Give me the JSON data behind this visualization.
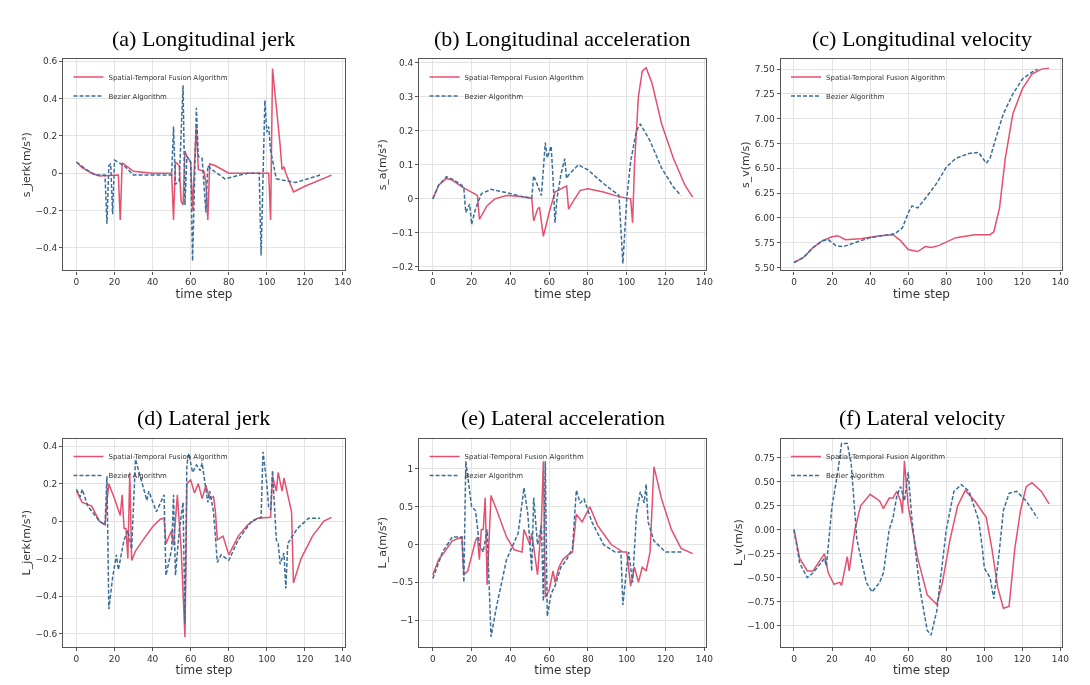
{
  "chart_data": [
    {
      "type": "line",
      "title": "(a) Longitudinal jerk",
      "xlabel": "time step",
      "ylabel": "s_jerk(m/s³)",
      "xlim": [
        -7,
        141
      ],
      "xticks": [
        0,
        20,
        40,
        60,
        80,
        100,
        120,
        140
      ],
      "ylim": [
        -0.52,
        0.61
      ],
      "yticks": [
        -0.4,
        -0.2,
        0.0,
        0.2,
        0.4,
        0.6
      ],
      "grid": true,
      "legend": "top left",
      "series": [
        {
          "name": "Spatial-Temporal Fusion Algorithm",
          "color": "#e4506e",
          "line_style": "solid",
          "x": [
            0,
            3,
            8,
            12,
            22,
            23,
            24,
            30,
            40,
            50,
            51,
            52,
            54,
            55,
            56,
            57,
            58,
            60,
            61,
            62,
            63,
            64,
            67,
            68,
            69,
            70,
            73,
            80,
            100,
            101,
            102,
            103,
            107,
            108,
            109,
            110,
            114,
            120,
            134
          ],
          "values": [
            0.06,
            0.03,
            0.0,
            -0.015,
            -0.01,
            -0.25,
            0.055,
            0.01,
            0.0,
            0.0,
            -0.25,
            0.06,
            0.04,
            -0.15,
            -0.17,
            0.12,
            0.09,
            0.06,
            -0.2,
            0.05,
            0.25,
            0.02,
            0.01,
            -0.05,
            -0.25,
            0.05,
            0.04,
            0.0,
            0.0,
            0.0,
            -0.25,
            0.56,
            0.15,
            0.02,
            0.035,
            0.0,
            -0.1,
            -0.07,
            -0.01
          ]
        },
        {
          "name": "Bezier Algorithm",
          "color": "#3a6e9a",
          "line_style": "dashed",
          "x": [
            0,
            5,
            10,
            15,
            16,
            17,
            18,
            19,
            20,
            25,
            30,
            40,
            50,
            51,
            52,
            54,
            56,
            57,
            58,
            60,
            61,
            63,
            64,
            66,
            68,
            69,
            71,
            78,
            90,
            96,
            97,
            99,
            100,
            101,
            102,
            105,
            115,
            128
          ],
          "values": [
            0.06,
            0.02,
            -0.01,
            -0.01,
            -0.27,
            0.04,
            0.05,
            -0.22,
            0.07,
            0.04,
            -0.01,
            -0.01,
            -0.01,
            0.25,
            -0.06,
            -0.04,
            0.47,
            -0.17,
            0.09,
            0.06,
            -0.47,
            0.35,
            0.09,
            0.08,
            -0.21,
            0.04,
            0.02,
            -0.03,
            0.0,
            0.0,
            -0.44,
            0.39,
            0.22,
            0.25,
            0.12,
            -0.03,
            -0.05,
            -0.01
          ]
        }
      ]
    },
    {
      "type": "line",
      "title": "(b) Longitudinal acceleration",
      "xlabel": "time step",
      "ylabel": "s_a(m/s²)",
      "xlim": [
        -7,
        141
      ],
      "xticks": [
        0,
        20,
        40,
        60,
        80,
        100,
        120,
        140
      ],
      "ylim": [
        -0.21,
        0.41
      ],
      "yticks": [
        -0.2,
        -0.1,
        0.0,
        0.1,
        0.2,
        0.3,
        0.4
      ],
      "grid": true,
      "legend": "top left",
      "series": [
        {
          "name": "Spatial-Temporal Fusion Algorithm",
          "color": "#e4506e",
          "line_style": "solid",
          "x": [
            0,
            3,
            7,
            10,
            15,
            23,
            24,
            28,
            32,
            38,
            45,
            51,
            52,
            54,
            55,
            57,
            60,
            62,
            63,
            69,
            70,
            72,
            76,
            80,
            88,
            95,
            102,
            103,
            104,
            106,
            108,
            110,
            113,
            118,
            124,
            130,
            134
          ],
          "values": [
            0.0,
            0.04,
            0.06,
            0.055,
            0.035,
            0.01,
            -0.06,
            -0.02,
            0.0,
            0.01,
            0.007,
            0.002,
            -0.065,
            -0.03,
            -0.025,
            -0.11,
            -0.04,
            0.0,
            0.02,
            0.038,
            -0.03,
            -0.01,
            0.025,
            0.03,
            0.02,
            0.008,
            0.0,
            -0.07,
            0.1,
            0.3,
            0.375,
            0.385,
            0.34,
            0.22,
            0.12,
            0.04,
            0.005
          ]
        },
        {
          "name": "Bezier Algorithm",
          "color": "#3a6e9a",
          "line_style": "dashed",
          "x": [
            0,
            3,
            7,
            10,
            15,
            16,
            17,
            19,
            20,
            22,
            25,
            30,
            38,
            45,
            51,
            52,
            54,
            56,
            58,
            59,
            61,
            62,
            63,
            64,
            66,
            68,
            69,
            70,
            75,
            80,
            88,
            96,
            98,
            100,
            102,
            105,
            107,
            112,
            118,
            124,
            128
          ],
          "values": [
            0.0,
            0.04,
            0.065,
            0.058,
            0.04,
            0.03,
            -0.04,
            -0.015,
            -0.075,
            -0.03,
            0.015,
            0.028,
            0.018,
            0.008,
            0.002,
            0.068,
            0.04,
            0.01,
            0.165,
            0.12,
            0.155,
            0.06,
            -0.07,
            0.0,
            0.07,
            0.118,
            0.06,
            0.07,
            0.1,
            0.085,
            0.045,
            0.01,
            -0.19,
            0.0,
            0.11,
            0.2,
            0.22,
            0.17,
            0.09,
            0.035,
            0.01
          ]
        }
      ]
    },
    {
      "type": "line",
      "title": "(c) Longitudinal velocity",
      "xlabel": "time step",
      "ylabel": "s_v(m/s)",
      "xlim": [
        -7,
        141
      ],
      "xticks": [
        0,
        20,
        40,
        60,
        80,
        100,
        120,
        140
      ],
      "ylim": [
        5.47,
        7.6
      ],
      "yticks": [
        {
          "value": 5.5,
          "label": "5.50"
        },
        {
          "value": 5.75,
          "label": "5.75"
        },
        {
          "value": 6.0,
          "label": "6.00"
        },
        {
          "value": 6.25,
          "label": "6.25"
        },
        {
          "value": 6.5,
          "label": "6.50"
        },
        {
          "value": 6.75,
          "label": "6.75"
        },
        {
          "value": 7.0,
          "label": "7.00"
        },
        {
          "value": 7.25,
          "label": "7.25"
        },
        {
          "value": 7.5,
          "label": "7.50"
        }
      ],
      "grid": true,
      "legend": "top left",
      "series": [
        {
          "name": "Spatial-Temporal Fusion Algorithm",
          "color": "#e4506e",
          "line_style": "solid",
          "x": [
            0,
            5,
            10,
            15,
            20,
            23,
            27,
            35,
            45,
            52,
            56,
            60,
            65,
            69,
            72,
            76,
            85,
            95,
            103,
            105,
            108,
            111,
            115,
            120,
            125,
            130,
            134
          ],
          "values": [
            5.55,
            5.6,
            5.7,
            5.77,
            5.81,
            5.82,
            5.78,
            5.79,
            5.82,
            5.83,
            5.77,
            5.68,
            5.66,
            5.71,
            5.7,
            5.72,
            5.8,
            5.83,
            5.83,
            5.86,
            6.1,
            6.6,
            7.05,
            7.3,
            7.45,
            7.5,
            7.51
          ]
        },
        {
          "name": "Bezier Algorithm",
          "color": "#3a6e9a",
          "line_style": "dashed",
          "x": [
            0,
            5,
            10,
            15,
            18,
            22,
            26,
            32,
            40,
            50,
            53,
            57,
            60,
            62,
            65,
            70,
            75,
            80,
            85,
            92,
            97,
            101,
            103,
            106,
            110,
            115,
            120,
            125,
            128
          ],
          "values": [
            5.55,
            5.6,
            5.7,
            5.77,
            5.78,
            5.72,
            5.71,
            5.75,
            5.8,
            5.83,
            5.84,
            5.9,
            6.05,
            6.12,
            6.1,
            6.22,
            6.35,
            6.51,
            6.6,
            6.65,
            6.66,
            6.55,
            6.6,
            6.8,
            7.05,
            7.25,
            7.4,
            7.47,
            7.5
          ]
        }
      ]
    },
    {
      "type": "line",
      "title": "(d) Lateral jerk",
      "xlabel": "time step",
      "ylabel": "L_jerk(m/s³)",
      "xlim": [
        -7,
        141
      ],
      "xticks": [
        0,
        20,
        40,
        60,
        80,
        100,
        120,
        140
      ],
      "ylim": [
        -0.67,
        0.44
      ],
      "yticks": [
        -0.6,
        -0.4,
        -0.2,
        0.0,
        0.2,
        0.4
      ],
      "grid": true,
      "legend": "top left",
      "series": [
        {
          "name": "Spatial-Temporal Fusion Algorithm",
          "color": "#e4506e",
          "line_style": "solid",
          "x": [
            0,
            3,
            8,
            12,
            15,
            16,
            17,
            20,
            23,
            24,
            25,
            26,
            27,
            28,
            29,
            31,
            35,
            40,
            44,
            46,
            47,
            50,
            51,
            53,
            55,
            57,
            58,
            60,
            62,
            64,
            66,
            68,
            70,
            72,
            73,
            74,
            77,
            80,
            85,
            90,
            95,
            102,
            103,
            105,
            106,
            108,
            109,
            113,
            114,
            118,
            124,
            130,
            134
          ],
          "values": [
            0.16,
            0.1,
            0.08,
            0.0,
            -0.02,
            0.1,
            0.2,
            0.12,
            0.03,
            0.14,
            -0.04,
            -0.04,
            -0.2,
            0.26,
            -0.21,
            -0.16,
            -0.1,
            -0.03,
            0.01,
            0.015,
            -0.12,
            -0.05,
            -0.13,
            0.14,
            -0.15,
            -0.62,
            0.2,
            0.22,
            0.15,
            0.2,
            0.12,
            0.19,
            0.12,
            0.13,
            0.05,
            -0.1,
            -0.08,
            -0.18,
            -0.08,
            -0.02,
            0.015,
            0.02,
            0.24,
            0.16,
            0.26,
            0.16,
            0.23,
            0.05,
            -0.33,
            -0.2,
            -0.08,
            0.0,
            0.02
          ]
        },
        {
          "name": "Bezier Algorithm",
          "color": "#3a6e9a",
          "line_style": "dashed",
          "x": [
            0,
            2,
            3,
            6,
            12,
            15,
            16,
            17,
            19,
            21,
            22,
            25,
            27,
            29,
            31,
            34,
            37,
            38,
            42,
            46,
            47,
            50,
            51,
            52,
            54,
            56,
            57,
            58,
            59,
            61,
            63,
            65,
            66,
            69,
            70,
            72,
            74,
            76,
            80,
            85,
            92,
            97,
            98,
            100,
            101,
            102,
            103,
            105,
            106,
            107,
            109,
            110,
            111,
            116,
            122,
            128
          ],
          "values": [
            0.17,
            0.13,
            0.17,
            0.08,
            0.0,
            -0.02,
            0.24,
            -0.47,
            -0.3,
            -0.18,
            -0.26,
            -0.1,
            -0.05,
            -0.15,
            0.33,
            0.22,
            0.11,
            0.16,
            0.05,
            0.14,
            -0.29,
            -0.15,
            0.14,
            -0.29,
            -0.05,
            0.1,
            -0.55,
            0.3,
            0.36,
            0.26,
            0.3,
            0.27,
            0.31,
            0.1,
            0.16,
            0.05,
            -0.22,
            -0.18,
            -0.21,
            -0.1,
            0.0,
            0.02,
            0.37,
            0.2,
            0.07,
            0.06,
            0.27,
            -0.1,
            -0.12,
            -0.23,
            -0.17,
            -0.36,
            -0.12,
            -0.04,
            0.015,
            0.015
          ]
        }
      ]
    },
    {
      "type": "line",
      "title": "(e) Lateral acceleration",
      "xlabel": "time step",
      "ylabel": "L_a(m/s²)",
      "xlim": [
        -7,
        141
      ],
      "xticks": [
        0,
        20,
        40,
        60,
        80,
        100,
        120,
        140
      ],
      "ylim": [
        -1.35,
        1.4
      ],
      "yticks": [
        -1.0,
        -0.5,
        0.0,
        0.5,
        1.0
      ],
      "grid": true,
      "legend": "top left",
      "series": [
        {
          "name": "Spatial-Temporal Fusion Algorithm",
          "color": "#e4506e",
          "line_style": "solid",
          "x": [
            0,
            3,
            6,
            10,
            15,
            16,
            18,
            22,
            23,
            24,
            25,
            26,
            27,
            28,
            30,
            33,
            38,
            42,
            46,
            47,
            50,
            51,
            54,
            56,
            57,
            58,
            60,
            62,
            63,
            65,
            67,
            69,
            72,
            74,
            77,
            81,
            85,
            92,
            98,
            100,
            102,
            104,
            106,
            108,
            110,
            112,
            114,
            118,
            123,
            128,
            134
          ],
          "values": [
            -0.4,
            -0.2,
            -0.1,
            0.05,
            0.1,
            -0.4,
            -0.35,
            0.05,
            0.1,
            -0.2,
            0.2,
            0.2,
            0.62,
            -0.53,
            0.65,
            0.45,
            0.1,
            -0.07,
            -0.1,
            0.2,
            0.0,
            0.15,
            -0.4,
            0.3,
            1.1,
            -0.7,
            -0.6,
            -0.35,
            -0.5,
            -0.3,
            -0.2,
            -0.15,
            -0.1,
            0.4,
            0.3,
            0.5,
            0.25,
            0.0,
            -0.1,
            -0.1,
            -0.55,
            -0.3,
            -0.5,
            -0.3,
            -0.35,
            -0.1,
            1.03,
            0.6,
            0.2,
            -0.05,
            -0.12
          ]
        },
        {
          "name": "Bezier Algorithm",
          "color": "#3a6e9a",
          "line_style": "dashed",
          "x": [
            0,
            5,
            10,
            15,
            16,
            17,
            20,
            22,
            24,
            26,
            28,
            30,
            33,
            38,
            44,
            47,
            49,
            51,
            52,
            54,
            56,
            57,
            58,
            59,
            61,
            63,
            66,
            69,
            72,
            74,
            76,
            78,
            82,
            88,
            94,
            97,
            98,
            100,
            101,
            103,
            105,
            107,
            109,
            110,
            111,
            114,
            120,
            126,
            129
          ],
          "values": [
            -0.45,
            -0.1,
            0.1,
            0.1,
            -0.5,
            1.1,
            0.5,
            0.45,
            0.0,
            -0.1,
            0.2,
            -1.22,
            -0.8,
            -0.2,
            0.15,
            0.75,
            0.4,
            -0.35,
            0.62,
            0.0,
            0.25,
            -0.75,
            1.1,
            -0.95,
            -0.65,
            -0.55,
            -0.3,
            -0.2,
            -0.05,
            0.72,
            0.55,
            0.6,
            0.3,
            0.0,
            -0.1,
            -0.1,
            -0.8,
            -0.3,
            -0.1,
            -0.5,
            0.4,
            0.7,
            0.55,
            0.8,
            0.3,
            0.05,
            -0.1,
            -0.1,
            -0.1
          ]
        }
      ]
    },
    {
      "type": "line",
      "title": "(f) Lateral velocity",
      "xlabel": "time step",
      "ylabel": "L_v(m/s)",
      "xlim": [
        -7,
        141
      ],
      "xticks": [
        0,
        20,
        40,
        60,
        80,
        100,
        120,
        140
      ],
      "ylim": [
        -1.22,
        0.95
      ],
      "yticks": [
        {
          "value": -1.0,
          "label": "−1.00"
        },
        {
          "value": -0.75,
          "label": "−0.75"
        },
        {
          "value": -0.5,
          "label": "−0.50"
        },
        {
          "value": -0.25,
          "label": "−0.25"
        },
        {
          "value": 0.0,
          "label": "0.00"
        },
        {
          "value": 0.25,
          "label": "0.25"
        },
        {
          "value": 0.5,
          "label": "0.50"
        },
        {
          "value": 0.75,
          "label": "0.75"
        }
      ],
      "grid": true,
      "legend": "top left",
      "series": [
        {
          "name": "Spatial-Temporal Fusion Algorithm",
          "color": "#e4506e",
          "line_style": "solid",
          "x": [
            0,
            3,
            7,
            10,
            16,
            18,
            21,
            24,
            25,
            28,
            29,
            32,
            35,
            40,
            45,
            47,
            50,
            52,
            54,
            56,
            57,
            58,
            60,
            65,
            70,
            75,
            78,
            82,
            86,
            90,
            95,
            101,
            104,
            107,
            110,
            113,
            116,
            119,
            122,
            125,
            130,
            134
          ],
          "values": [
            0.0,
            -0.3,
            -0.43,
            -0.43,
            -0.25,
            -0.45,
            -0.57,
            -0.55,
            -0.58,
            -0.28,
            -0.43,
            0.0,
            0.25,
            0.37,
            0.3,
            0.22,
            0.33,
            0.33,
            0.4,
            0.3,
            0.17,
            0.72,
            0.25,
            -0.3,
            -0.68,
            -0.78,
            -0.55,
            -0.1,
            0.25,
            0.41,
            0.3,
            0.13,
            -0.2,
            -0.6,
            -0.82,
            -0.8,
            -0.2,
            0.2,
            0.45,
            0.49,
            0.4,
            0.27
          ]
        },
        {
          "name": "Bezier Algorithm",
          "color": "#3a6e9a",
          "line_style": "dashed",
          "x": [
            0,
            3,
            7,
            10,
            16,
            17,
            20,
            23,
            25,
            28,
            30,
            33,
            38,
            41,
            45,
            47,
            50,
            52,
            54,
            56,
            58,
            60,
            62,
            66,
            70,
            72,
            75,
            80,
            84,
            88,
            92,
            97,
            99,
            100,
            103,
            105,
            108,
            110,
            113,
            117,
            122,
            128
          ],
          "values": [
            0.0,
            -0.35,
            -0.5,
            -0.45,
            -0.3,
            -0.38,
            0.25,
            0.6,
            0.9,
            0.9,
            0.7,
            -0.1,
            -0.55,
            -0.65,
            -0.55,
            -0.45,
            0.0,
            0.12,
            0.35,
            0.45,
            0.3,
            0.6,
            0.1,
            -0.6,
            -1.05,
            -1.1,
            -0.85,
            0.0,
            0.4,
            0.47,
            0.4,
            0.1,
            -0.2,
            -0.4,
            -0.5,
            -0.72,
            -0.2,
            0.2,
            0.38,
            0.4,
            0.3,
            0.12
          ]
        }
      ]
    }
  ]
}
